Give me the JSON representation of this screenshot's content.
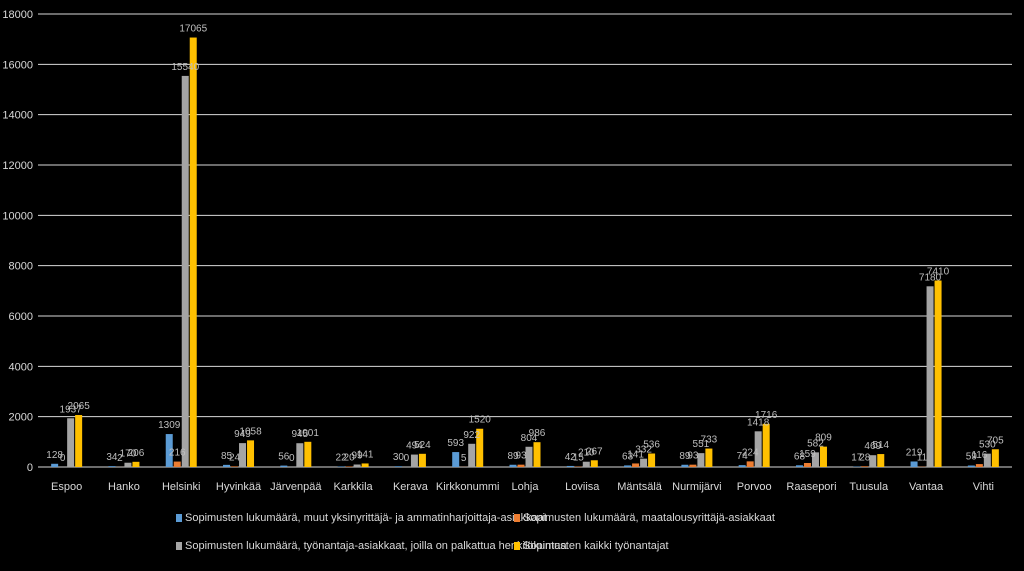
{
  "chart_data": {
    "type": "bar",
    "title": "",
    "xlabel": "",
    "ylabel": "",
    "ylim": [
      0,
      18000
    ],
    "yticks": [
      0,
      2000,
      4000,
      6000,
      8000,
      10000,
      12000,
      14000,
      16000,
      18000
    ],
    "grid": true,
    "legend_position": "bottom",
    "categories": [
      "Espoo",
      "Hanko",
      "Helsinki",
      "Hyvinkää",
      "Järvenpää",
      "Karkkila",
      "Kerava",
      "Kirkkonummi",
      "Lohja",
      "Loviisa",
      "Mäntsälä",
      "Nurmijärvi",
      "Porvoo",
      "Raasepori",
      "Tuusula",
      "Vantaa",
      "Vihti"
    ],
    "series": [
      {
        "name": "Sopimusten lukumäärä, muut yksinyrittäjä- ja ammatinharjoittaja-asiakkaat",
        "color": "#5b9bd5",
        "values": [
          128,
          34,
          1309,
          85,
          56,
          22,
          30,
          593,
          89,
          42,
          63,
          89,
          74,
          68,
          17,
          219,
          59
        ],
        "labels": [
          "128",
          "34",
          "1309",
          "85",
          "56",
          "22",
          "30",
          "593",
          "89",
          "42",
          "63",
          "89",
          "74",
          "68",
          "17",
          "219",
          "59"
        ]
      },
      {
        "name": "Sopimusten lukumäärä, maatalousyrittäjä-asiakkaat",
        "color": "#ed7d31",
        "values": [
          0,
          2,
          216,
          24,
          0,
          20,
          0,
          5,
          93,
          15,
          141,
          93,
          224,
          159,
          28,
          11,
          116
        ],
        "labels": [
          "0",
          "2",
          "216",
          "24",
          "0",
          "20",
          "0",
          "5",
          "93",
          "15",
          "141",
          "93",
          "224",
          "159",
          "28",
          "11",
          "116"
        ]
      },
      {
        "name": "Sopimusten lukumäärä, työnantaja-asiakkaat, joilla on palkattua henkilökuntaa",
        "color": "#a5a5a5",
        "values": [
          1937,
          170,
          15540,
          949,
          945,
          99,
          494,
          922,
          804,
          210,
          332,
          551,
          1418,
          582,
          469,
          7180,
          530
        ],
        "labels": [
          "1937",
          "170",
          "15540",
          "949",
          "945",
          "99",
          "494",
          "922",
          "804",
          "210",
          "332",
          "551",
          "1418",
          "582",
          "469",
          "7180",
          "530"
        ]
      },
      {
        "name": "Sopimusten kaikki työnantajat",
        "color": "#ffc000",
        "values": [
          2065,
          206,
          17065,
          1058,
          1001,
          141,
          524,
          1520,
          986,
          267,
          536,
          733,
          1716,
          809,
          514,
          7410,
          705
        ],
        "labels": [
          "2065",
          "206",
          "17065",
          "1058",
          "1001",
          "141",
          "524",
          "1520",
          "986",
          "267",
          "536",
          "733",
          "1716",
          "809",
          "514",
          "7410",
          "705"
        ]
      }
    ]
  }
}
